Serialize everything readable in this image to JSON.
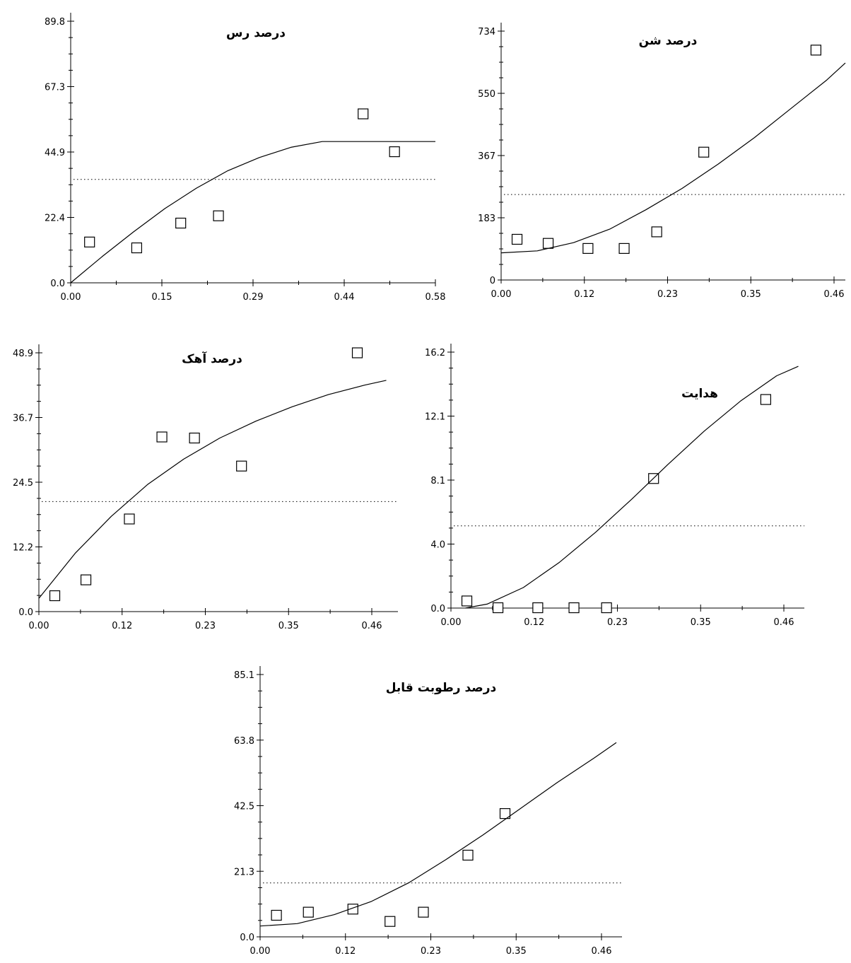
{
  "chart_data": [
    {
      "type": "scatter",
      "title": "درصد رس",
      "xlabel": "",
      "ylabel": "",
      "x_ticks": [
        "0.00",
        "0.15",
        "0.29",
        "0.44",
        "0.58"
      ],
      "y_ticks": [
        "0.0",
        "22.4",
        "44.9",
        "67.3",
        "89.8"
      ],
      "xlim": [
        0,
        0.58
      ],
      "ylim": [
        0,
        89.8
      ],
      "series": [
        {
          "kind": "points",
          "x": [
            0.03,
            0.105,
            0.175,
            0.235,
            0.465,
            0.515
          ],
          "y": [
            14,
            12,
            20.5,
            23,
            58,
            45
          ]
        },
        {
          "kind": "fit",
          "x": [
            0,
            0.05,
            0.1,
            0.15,
            0.2,
            0.25,
            0.3,
            0.35,
            0.4,
            0.45,
            0.5,
            0.55,
            0.6
          ],
          "y": [
            0,
            9,
            17.5,
            25.5,
            32.5,
            38.5,
            43,
            46.5,
            48.5,
            48.5,
            48.5,
            48.5,
            48.5
          ]
        },
        {
          "kind": "reference",
          "y": 35.5
        }
      ]
    },
    {
      "type": "scatter",
      "title": "درصد شن",
      "xlabel": "",
      "ylabel": "",
      "x_ticks": [
        "0.00",
        "0.12",
        "0.23",
        "0.35",
        "0.46"
      ],
      "y_ticks": [
        "0",
        "183",
        "367",
        "550",
        "734"
      ],
      "xlim": [
        0,
        0.46
      ],
      "ylim": [
        0,
        734
      ],
      "series": [
        {
          "kind": "points",
          "x": [
            0.022,
            0.065,
            0.12,
            0.17,
            0.215,
            0.28,
            0.435
          ],
          "y": [
            120,
            108,
            93,
            93,
            142,
            377,
            678
          ]
        },
        {
          "kind": "fit",
          "x": [
            0,
            0.05,
            0.1,
            0.15,
            0.2,
            0.25,
            0.3,
            0.35,
            0.4,
            0.45,
            0.48
          ],
          "y": [
            80,
            86,
            110,
            150,
            207,
            270,
            342,
            420,
            505,
            590,
            640
          ]
        },
        {
          "kind": "reference",
          "y": 252
        }
      ]
    },
    {
      "type": "scatter",
      "title": "درصد آهک",
      "xlabel": "",
      "ylabel": "",
      "x_ticks": [
        "0.00",
        "0.12",
        "0.23",
        "0.35",
        "0.46"
      ],
      "y_ticks": [
        "0.0",
        "12.2",
        "24.5",
        "36.7",
        "48.9"
      ],
      "xlim": [
        0,
        0.46
      ],
      "ylim": [
        0,
        48.9
      ],
      "series": [
        {
          "kind": "points",
          "x": [
            0.022,
            0.065,
            0.125,
            0.17,
            0.215,
            0.28,
            0.44
          ],
          "y": [
            3,
            6,
            17.5,
            33,
            32.8,
            27.5,
            48.9
          ]
        },
        {
          "kind": "fit",
          "x": [
            0,
            0.05,
            0.1,
            0.15,
            0.2,
            0.25,
            0.3,
            0.35,
            0.4,
            0.45,
            0.48
          ],
          "y": [
            2.5,
            11,
            18,
            24,
            28.8,
            32.8,
            36,
            38.7,
            41,
            42.8,
            43.7
          ]
        },
        {
          "kind": "reference",
          "y": 20.8
        }
      ]
    },
    {
      "type": "scatter",
      "title": "هدایت",
      "xlabel": "",
      "ylabel": "",
      "x_ticks": [
        "0.00",
        "0.12",
        "0.23",
        "0.35",
        "0.46"
      ],
      "y_ticks": [
        "0.0",
        "4.0",
        "8.1",
        "12.1",
        "16.2"
      ],
      "xlim": [
        0,
        0.46
      ],
      "ylim": [
        0,
        16.2
      ],
      "series": [
        {
          "kind": "points",
          "x": [
            0.022,
            0.065,
            0.12,
            0.17,
            0.215,
            0.28,
            0.435
          ],
          "y": [
            0.45,
            0.02,
            0.02,
            0.02,
            0.02,
            8.2,
            13.2
          ]
        },
        {
          "kind": "fit",
          "x": [
            0.02,
            0.05,
            0.1,
            0.15,
            0.2,
            0.25,
            0.3,
            0.35,
            0.4,
            0.45,
            0.48
          ],
          "y": [
            0,
            0.25,
            1.3,
            2.9,
            4.8,
            6.9,
            9.1,
            11.2,
            13.1,
            14.7,
            15.3
          ]
        },
        {
          "kind": "reference",
          "y": 5.2
        }
      ]
    },
    {
      "type": "scatter",
      "title": "درصد رطوبت قابل",
      "xlabel": "",
      "ylabel": "",
      "x_ticks": [
        "0.00",
        "0.12",
        "0.23",
        "0.35",
        "0.46"
      ],
      "y_ticks": [
        "0.0",
        "21.3",
        "42.5",
        "63.8",
        "85.1"
      ],
      "xlim": [
        0,
        0.46
      ],
      "ylim": [
        0,
        85.1
      ],
      "series": [
        {
          "kind": "points",
          "x": [
            0.022,
            0.065,
            0.125,
            0.175,
            0.22,
            0.28,
            0.33
          ],
          "y": [
            7,
            8,
            9,
            5,
            8,
            26.5,
            40
          ]
        },
        {
          "kind": "fit",
          "x": [
            0,
            0.05,
            0.1,
            0.15,
            0.2,
            0.25,
            0.3,
            0.35,
            0.4,
            0.45,
            0.48
          ],
          "y": [
            3.5,
            4.3,
            7.2,
            11.5,
            17.5,
            25,
            33,
            41.5,
            50,
            58,
            63
          ]
        },
        {
          "kind": "reference",
          "y": 17.5
        }
      ]
    }
  ]
}
